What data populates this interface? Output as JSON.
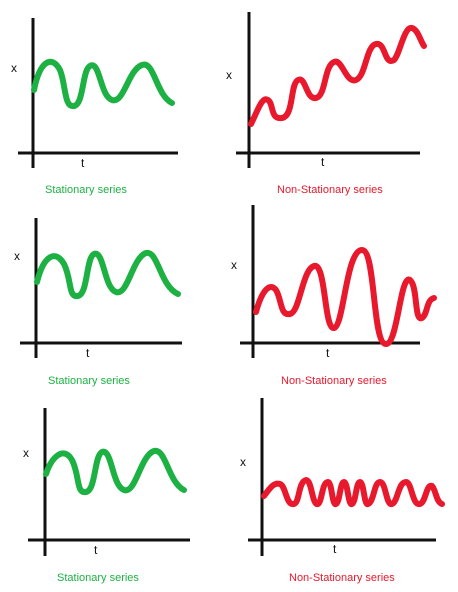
{
  "axes": {
    "x_label": "t",
    "y_label": "x"
  },
  "colors": {
    "stationary": "#1db144",
    "non_stationary": "#e8192c",
    "axis": "#111111"
  },
  "panels": [
    {
      "caption": "Stationary series",
      "kind": "stationary",
      "pattern": "constant-wave"
    },
    {
      "caption": "Non-Stationary series",
      "kind": "non_stationary",
      "pattern": "upward-trend"
    },
    {
      "caption": "Stationary series",
      "kind": "stationary",
      "pattern": "constant-wave"
    },
    {
      "caption": "Non-Stationary series",
      "kind": "non_stationary",
      "pattern": "growing-amplitude"
    },
    {
      "caption": "Stationary series",
      "kind": "stationary",
      "pattern": "constant-wave"
    },
    {
      "caption": "Non-Stationary series",
      "kind": "non_stationary",
      "pattern": "varying-frequency"
    }
  ]
}
